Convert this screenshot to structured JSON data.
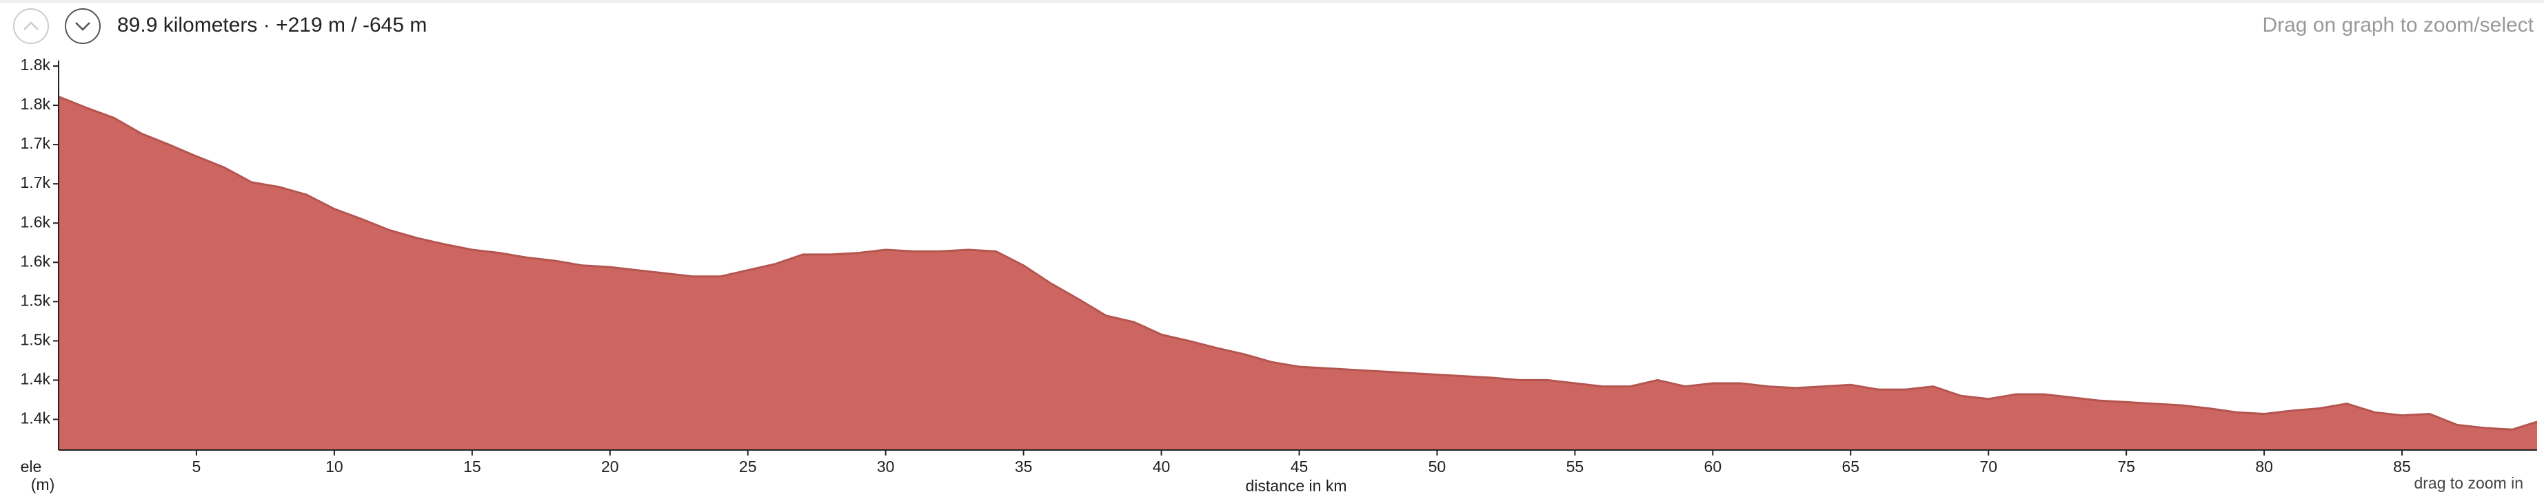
{
  "header": {
    "summary": "89.9 kilometers · +219 m / -645 m",
    "hint": "Drag on graph to zoom/select"
  },
  "chart_data": {
    "type": "area",
    "xlabel": "distance in km",
    "ylabel": "ele",
    "yunit": "(m)",
    "note": "drag to zoom in",
    "color": "#cd6660",
    "x": [
      0,
      1,
      2,
      3,
      4,
      5,
      6,
      7,
      8,
      9,
      10,
      11,
      12,
      13,
      14,
      15,
      16,
      17,
      18,
      19,
      20,
      21,
      22,
      23,
      24,
      25,
      26,
      27,
      28,
      29,
      30,
      31,
      32,
      33,
      34,
      35,
      36,
      37,
      38,
      39,
      40,
      41,
      42,
      43,
      44,
      45,
      46,
      47,
      48,
      49,
      50,
      51,
      52,
      53,
      54,
      55,
      56,
      57,
      58,
      59,
      60,
      61,
      62,
      63,
      64,
      65,
      66,
      67,
      68,
      69,
      70,
      71,
      72,
      73,
      74,
      75,
      76,
      77,
      78,
      79,
      80,
      81,
      82,
      83,
      84,
      85,
      86,
      87,
      88,
      89,
      89.9
    ],
    "values": [
      1761,
      1747,
      1734,
      1714,
      1700,
      1685,
      1671,
      1652,
      1646,
      1636,
      1618,
      1605,
      1591,
      1581,
      1573,
      1566,
      1562,
      1556,
      1552,
      1546,
      1544,
      1540,
      1536,
      1532,
      1532,
      1540,
      1548,
      1560,
      1560,
      1562,
      1566,
      1564,
      1564,
      1566,
      1564,
      1546,
      1523,
      1503,
      1482,
      1474,
      1458,
      1450,
      1441,
      1433,
      1423,
      1417,
      1415,
      1413,
      1411,
      1409,
      1407,
      1405,
      1403,
      1400,
      1400,
      1396,
      1392,
      1392,
      1400,
      1392,
      1396,
      1396,
      1392,
      1390,
      1392,
      1394,
      1388,
      1388,
      1392,
      1380,
      1376,
      1382,
      1382,
      1378,
      1374,
      1372,
      1370,
      1368,
      1364,
      1359,
      1357,
      1361,
      1364,
      1370,
      1359,
      1355,
      1357,
      1343,
      1339,
      1337,
      1347
    ],
    "xlim": [
      0,
      89.9
    ],
    "ylim": [
      1311,
      1800
    ],
    "xticks": [
      5,
      10,
      15,
      20,
      25,
      30,
      35,
      40,
      45,
      50,
      55,
      60,
      65,
      70,
      75,
      80,
      85
    ],
    "yticks": [
      {
        "value": 1350,
        "label": "1.4k"
      },
      {
        "value": 1400,
        "label": "1.4k"
      },
      {
        "value": 1450,
        "label": "1.5k"
      },
      {
        "value": 1500,
        "label": "1.5k"
      },
      {
        "value": 1550,
        "label": "1.6k"
      },
      {
        "value": 1600,
        "label": "1.6k"
      },
      {
        "value": 1650,
        "label": "1.7k"
      },
      {
        "value": 1700,
        "label": "1.7k"
      },
      {
        "value": 1750,
        "label": "1.8k"
      },
      {
        "value": 1800,
        "label": "1.8k"
      }
    ]
  }
}
